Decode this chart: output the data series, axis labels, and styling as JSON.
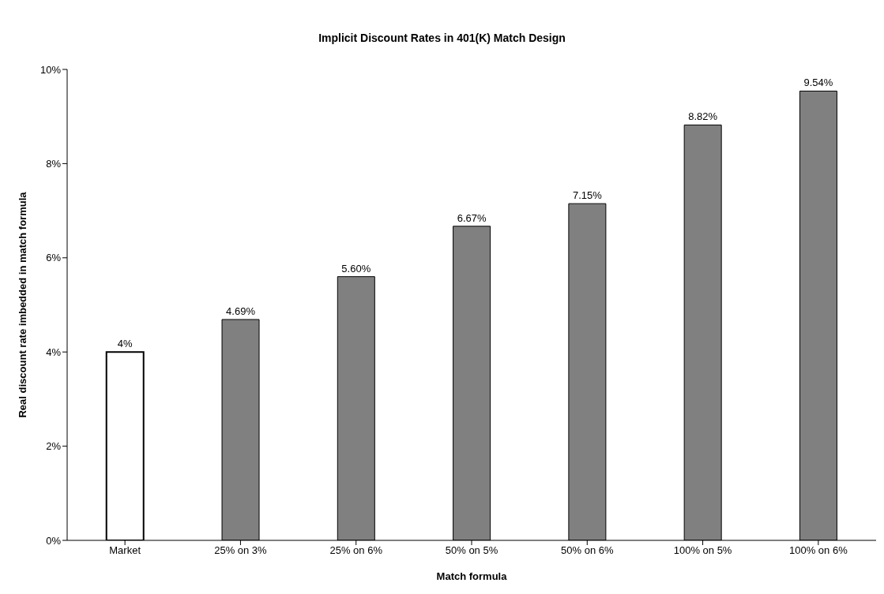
{
  "chart_data": {
    "type": "bar",
    "title": "Implicit Discount Rates in 401(K) Match Design",
    "xlabel": "Match formula",
    "ylabel": "Real discount rate imbedded in match formula",
    "categories": [
      "Market",
      "25% on 3%",
      "25% on 6%",
      "50% on 5%",
      "50% on 6%",
      "100% on 5%",
      "100% on 6%"
    ],
    "values": [
      4,
      4.69,
      5.6,
      6.67,
      7.15,
      8.82,
      9.54
    ],
    "value_labels": [
      "4%",
      "4.69%",
      "5.60%",
      "6.67%",
      "7.15%",
      "8.82%",
      "9.54%"
    ],
    "colors": [
      "#ffffff",
      "#808080",
      "#808080",
      "#808080",
      "#808080",
      "#808080",
      "#808080"
    ],
    "ylim": [
      0,
      10
    ],
    "yticks": [
      {
        "value": 0,
        "label": "0%"
      },
      {
        "value": 2,
        "label": "2%"
      },
      {
        "value": 4,
        "label": "4%"
      },
      {
        "value": 6,
        "label": "6%"
      },
      {
        "value": 8,
        "label": "8%"
      },
      {
        "value": 10,
        "label": "10%"
      }
    ],
    "grid": false,
    "legend": false
  }
}
